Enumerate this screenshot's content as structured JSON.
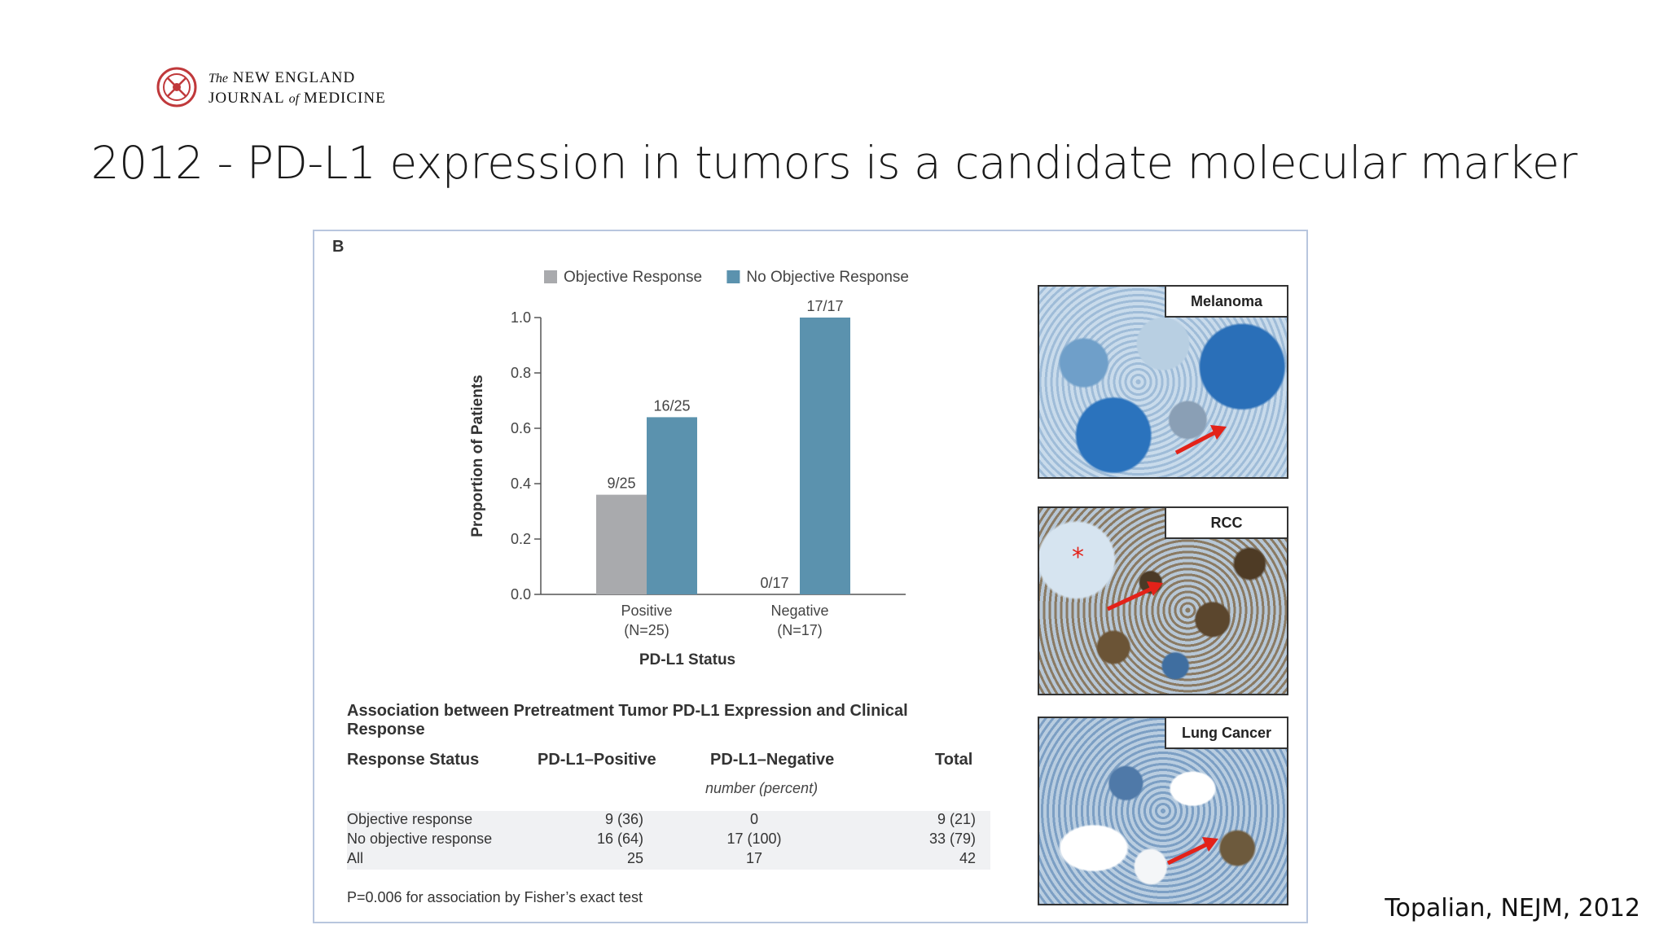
{
  "logo": {
    "line1_prefix": "The",
    "line1_main": "NEW ENGLAND",
    "line2_main": "JOURNAL",
    "line2_of": "of",
    "line2_end": "MEDICINE"
  },
  "slide": {
    "title": "2012 - PD-L1 expression in tumors is a candidate molecular marker"
  },
  "figure": {
    "panel_label": "B"
  },
  "chart_data": {
    "type": "bar",
    "categories": [
      "Positive (N=25)",
      "Negative (N=17)"
    ],
    "category_lines": [
      [
        "Positive",
        "(N=25)"
      ],
      [
        "Negative",
        "(N=17)"
      ]
    ],
    "series": [
      {
        "name": "Objective Response",
        "values": [
          0.36,
          0.0
        ],
        "labels": [
          "9/25",
          "0/17"
        ],
        "color": "#a9aaad"
      },
      {
        "name": "No Objective Response",
        "values": [
          0.64,
          1.0
        ],
        "labels": [
          "16/25",
          "17/17"
        ],
        "color": "#5b92ae"
      }
    ],
    "xlabel": "PD-L1 Status",
    "ylabel": "Proportion of Patients",
    "ylim": [
      0,
      1.0
    ],
    "yticks": [
      "0.0",
      "0.2",
      "0.4",
      "0.6",
      "0.8",
      "1.0"
    ],
    "legend": "top",
    "grid": false
  },
  "table": {
    "title": "Association between Pretreatment Tumor PD-L1 Expression and Clinical Response",
    "headers": [
      "Response Status",
      "PD-L1–Positive",
      "PD-L1–Negative",
      "Total"
    ],
    "unit_note": "number (percent)",
    "rows": [
      [
        "Objective response",
        "9 (36)",
        "0",
        "9 (21)"
      ],
      [
        "No objective response",
        "16 (64)",
        "17 (100)",
        "33 (79)"
      ],
      [
        "All",
        "25",
        "17",
        "42"
      ]
    ],
    "footnote": "P=0.006 for association by Fisher’s exact test"
  },
  "photos": [
    {
      "label": "Melanoma"
    },
    {
      "label": "RCC"
    },
    {
      "label": "Lung Cancer"
    }
  ],
  "citation": "Topalian, NEJM, 2012"
}
